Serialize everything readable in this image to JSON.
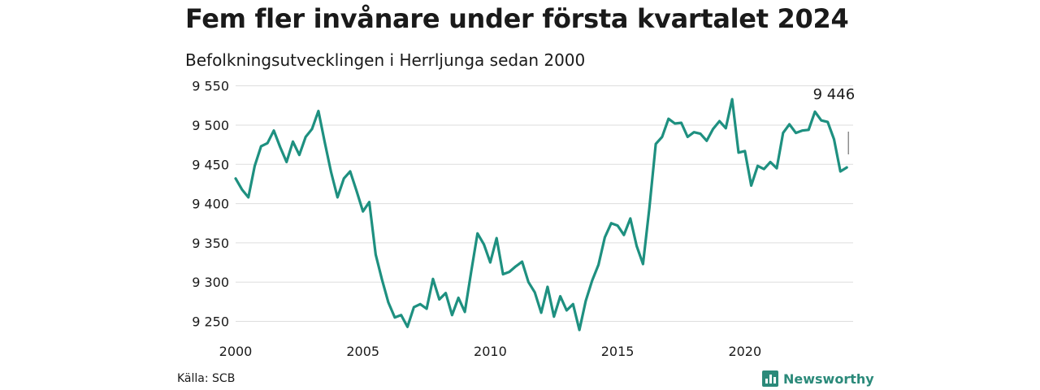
{
  "header": {
    "title": "Fem fler invånare under första kvartalet 2024",
    "subtitle": "Befolkningsutvecklingen i Herrljunga sedan 2000"
  },
  "footer": {
    "source": "Källa: SCB",
    "brand": "Newsworthy"
  },
  "colors": {
    "line": "#1e9080",
    "grid": "#dddddd",
    "brand": "#2b8a7a"
  },
  "chart_data": {
    "type": "line",
    "title": "Fem fler invånare under första kvartalet 2024",
    "subtitle": "Befolkningsutvecklingen i Herrljunga sedan 2000",
    "xlabel": "",
    "ylabel": "",
    "xlim": [
      2000,
      2024.25
    ],
    "ylim": [
      9235,
      9560
    ],
    "x_ticks": [
      2000,
      2005,
      2010,
      2015,
      2020
    ],
    "x_tick_labels": [
      "2000",
      "2005",
      "2010",
      "2015",
      "2020"
    ],
    "y_ticks": [
      9250,
      9300,
      9350,
      9400,
      9450,
      9500,
      9550
    ],
    "y_tick_labels": [
      "9 250",
      "9 300",
      "9 350",
      "9 400",
      "9 450",
      "9 500",
      "9 550"
    ],
    "grid": true,
    "last_value_label": "9 446",
    "series": [
      {
        "x_start": "2000-Q1",
        "interval": "quarter",
        "values": [
          9432,
          9418,
          9408,
          9448,
          9473,
          9477,
          9493,
          9472,
          9453,
          9479,
          9462,
          9485,
          9495,
          9518,
          9478,
          9440,
          9408,
          9432,
          9441,
          9416,
          9390,
          9402,
          9335,
          9303,
          9274,
          9255,
          9258,
          9243,
          9268,
          9272,
          9266,
          9304,
          9278,
          9286,
          9258,
          9280,
          9262,
          9313,
          9362,
          9348,
          9325,
          9356,
          9310,
          9313,
          9320,
          9326,
          9300,
          9287,
          9261,
          9294,
          9256,
          9282,
          9264,
          9272,
          9239,
          9276,
          9302,
          9322,
          9357,
          9375,
          9372,
          9360,
          9381,
          9346,
          9323,
          9395,
          9476,
          9485,
          9508,
          9502,
          9503,
          9485,
          9491,
          9489,
          9480,
          9495,
          9505,
          9496,
          9533,
          9465,
          9467,
          9423,
          9448,
          9444,
          9453,
          9445,
          9490,
          9501,
          9490,
          9493,
          9494,
          9517,
          9506,
          9504,
          9482,
          9441,
          9446
        ]
      }
    ]
  }
}
